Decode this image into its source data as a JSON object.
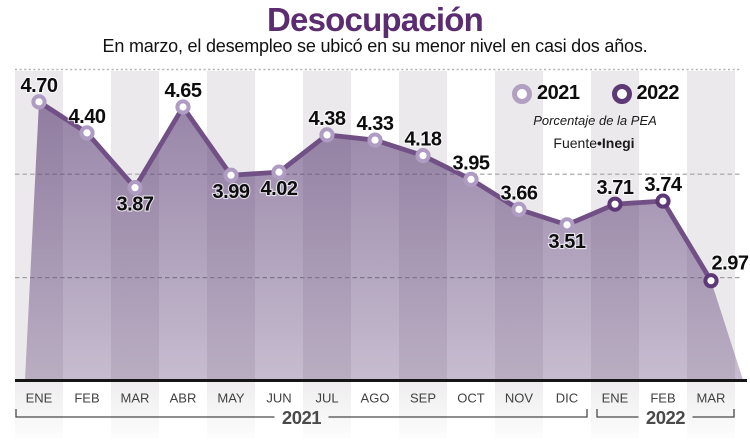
{
  "title": "Desocupación",
  "subtitle": "En marzo, el desempleo se ubicó en su menor nivel en casi dos años.",
  "legend": {
    "items": [
      {
        "label": "2021",
        "ring_color": "#b2a0c3"
      },
      {
        "label": "2022",
        "ring_color": "#5d3a75"
      }
    ],
    "note": "Porcentaje de la PEA",
    "source_label": "Fuente",
    "source_separator": "•",
    "source_name": "Inegi"
  },
  "colors": {
    "title": "#5b2d70",
    "line": "#715086",
    "marker_2021": "#af9cc2",
    "marker_2022": "#5d3a75",
    "area_base": "90,60,116",
    "band": "#ebe9eb",
    "grid": "#a3a0a3",
    "dotted": "#b3b1b3",
    "baseline": "#151515",
    "axis_text": "#414141",
    "year_text": "#4a4a4a",
    "value_text": "#0d0d0d"
  },
  "chart_data": {
    "type": "line",
    "title": "Desocupación",
    "ylabel": "Porcentaje de la PEA",
    "ylim": [
      2.0,
      5.0
    ],
    "gridline_values": [
      4.0,
      3.0
    ],
    "top_dotted_value": 5.0,
    "baseline_value": 2.0,
    "points": [
      {
        "month": "ENE",
        "year": "2021",
        "value": 4.7,
        "label": "4.70",
        "label_pos": "above"
      },
      {
        "month": "FEB",
        "year": "2021",
        "value": 4.4,
        "label": "4.40",
        "label_pos": "above"
      },
      {
        "month": "MAR",
        "year": "2021",
        "value": 3.87,
        "label": "3.87",
        "label_pos": "below"
      },
      {
        "month": "ABR",
        "year": "2021",
        "value": 4.65,
        "label": "4.65",
        "label_pos": "above"
      },
      {
        "month": "MAY",
        "year": "2021",
        "value": 3.99,
        "label": "3.99",
        "label_pos": "below"
      },
      {
        "month": "JUN",
        "year": "2021",
        "value": 4.02,
        "label": "4.02",
        "label_pos": "below"
      },
      {
        "month": "JUL",
        "year": "2021",
        "value": 4.38,
        "label": "4.38",
        "label_pos": "above"
      },
      {
        "month": "AGO",
        "year": "2021",
        "value": 4.33,
        "label": "4.33",
        "label_pos": "above"
      },
      {
        "month": "SEP",
        "year": "2021",
        "value": 4.18,
        "label": "4.18",
        "label_pos": "above"
      },
      {
        "month": "OCT",
        "year": "2021",
        "value": 3.95,
        "label": "3.95",
        "label_pos": "above"
      },
      {
        "month": "NOV",
        "year": "2021",
        "value": 3.66,
        "label": "3.66",
        "label_pos": "above"
      },
      {
        "month": "DIC",
        "year": "2021",
        "value": 3.51,
        "label": "3.51",
        "label_pos": "below"
      },
      {
        "month": "ENE",
        "year": "2022",
        "value": 3.71,
        "label": "3.71",
        "label_pos": "above"
      },
      {
        "month": "FEB",
        "year": "2022",
        "value": 3.74,
        "label": "3.74",
        "label_pos": "above"
      },
      {
        "month": "MAR",
        "year": "2022",
        "value": 2.97,
        "label": "2.97",
        "label_pos": "above-right"
      }
    ],
    "year_groups": [
      {
        "label": "2021",
        "from": 0,
        "to": 11
      },
      {
        "label": "2022",
        "from": 12,
        "to": 14
      }
    ]
  }
}
